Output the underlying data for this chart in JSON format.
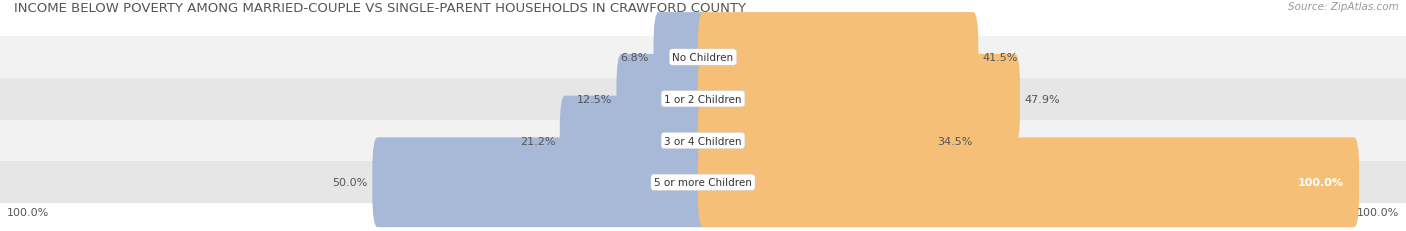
{
  "title": "INCOME BELOW POVERTY AMONG MARRIED-COUPLE VS SINGLE-PARENT HOUSEHOLDS IN CRAWFORD COUNTY",
  "source": "Source: ZipAtlas.com",
  "categories": [
    "No Children",
    "1 or 2 Children",
    "3 or 4 Children",
    "5 or more Children"
  ],
  "married_values": [
    6.8,
    12.5,
    21.2,
    50.0
  ],
  "single_values": [
    41.5,
    47.9,
    34.5,
    100.0
  ],
  "married_color": "#a8b9d8",
  "single_color": "#f5bf78",
  "row_bg_light": "#f2f2f2",
  "row_bg_dark": "#e6e6e6",
  "title_fontsize": 9.5,
  "source_fontsize": 7.5,
  "label_fontsize": 8,
  "cat_fontsize": 7.5,
  "legend_fontsize": 8,
  "max_value": 100.0,
  "bar_height": 0.55,
  "background_color": "#ffffff",
  "text_color": "#555555",
  "source_color": "#999999"
}
